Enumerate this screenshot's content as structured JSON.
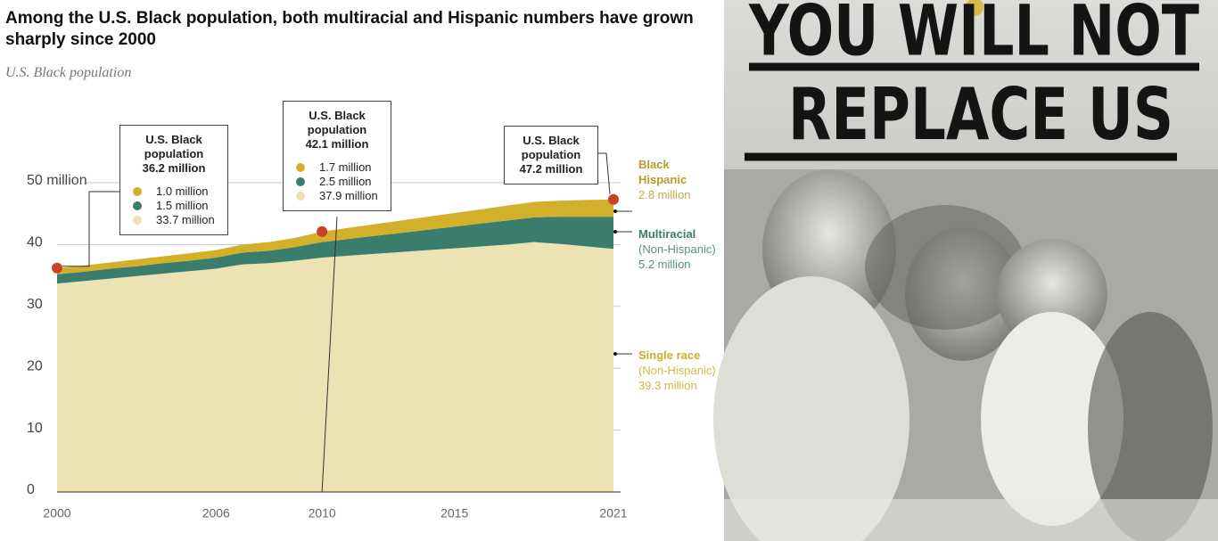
{
  "chart_data": {
    "type": "stacked_area",
    "title": "Among the U.S. Black population, both multiracial and Hispanic numbers have grown sharply since 2000",
    "subtitle": "U.S. Black population",
    "x": [
      2000,
      2001,
      2002,
      2003,
      2004,
      2005,
      2006,
      2007,
      2008,
      2009,
      2010,
      2011,
      2012,
      2013,
      2014,
      2015,
      2016,
      2017,
      2018,
      2019,
      2020,
      2021
    ],
    "series": [
      {
        "name": "Single race",
        "end_label": [
          "(Non-Hispanic)",
          "39.3 million"
        ],
        "color": "#ece2b3",
        "label_color": "#d1ac25",
        "values": [
          33.7,
          34.1,
          34.5,
          34.9,
          35.3,
          35.7,
          36.1,
          36.8,
          37.0,
          37.4,
          37.9,
          38.2,
          38.5,
          38.8,
          39.1,
          39.4,
          39.7,
          40.0,
          40.4,
          40.1,
          39.7,
          39.3
        ]
      },
      {
        "name": "Multiracial",
        "end_label": [
          "(Non-Hispanic)",
          "5.2 million"
        ],
        "color": "#3b7d6d",
        "label_color": "#3b7d6d",
        "values": [
          1.5,
          1.5,
          1.6,
          1.6,
          1.7,
          1.7,
          1.8,
          1.9,
          2.0,
          2.2,
          2.5,
          2.7,
          2.9,
          3.1,
          3.3,
          3.5,
          3.7,
          3.9,
          4.0,
          4.4,
          4.8,
          5.2
        ]
      },
      {
        "name": "Black Hispanic",
        "end_label": [
          "2.8 million"
        ],
        "color": "#d3b029",
        "label_color": "#b99a2c",
        "values": [
          1.0,
          1.0,
          1.0,
          1.1,
          1.1,
          1.2,
          1.2,
          1.3,
          1.4,
          1.5,
          1.7,
          1.8,
          1.9,
          2.0,
          2.1,
          2.2,
          2.3,
          2.4,
          2.5,
          2.6,
          2.7,
          2.8
        ]
      }
    ],
    "xlim": [
      2000,
      2021
    ],
    "xticks": [
      2000,
      2006,
      2010,
      2015,
      2021
    ],
    "ylim": [
      0,
      50
    ],
    "yticks": [
      0,
      10,
      20,
      30,
      40,
      {
        "value": 50,
        "label": "50 million"
      }
    ],
    "callouts": [
      {
        "x": 2000,
        "lines": [
          "U.S. Black",
          "population",
          "36.2 million"
        ],
        "items": [
          "1.0 million",
          "1.5 million",
          "33.7 million"
        ]
      },
      {
        "x": 2010,
        "lines": [
          "U.S. Black",
          "population",
          "42.1 million"
        ],
        "items": [
          "1.7 million",
          "2.5 million",
          "37.9 million"
        ]
      },
      {
        "x": 2021,
        "lines": [
          "U.S. Black",
          "population",
          "47.2 million"
        ],
        "items": []
      }
    ]
  },
  "poster": {
    "lines": [
      "YOU WILL NOT",
      "REPLACE US"
    ]
  }
}
